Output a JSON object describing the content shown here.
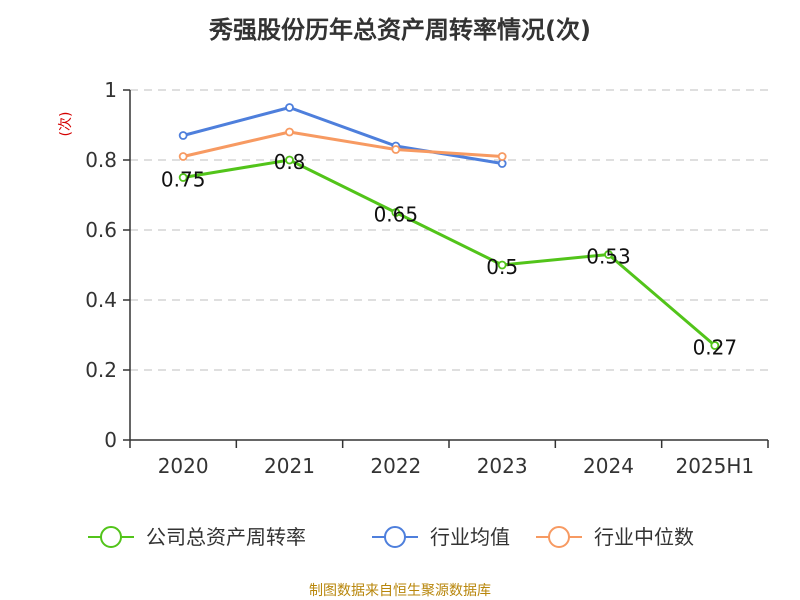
{
  "chart_data": {
    "type": "line",
    "title": "秀强股份历年总资产周转率情况(次)",
    "ylabel": "(次)",
    "xlabel": "",
    "categories": [
      "2020",
      "2021",
      "2022",
      "2023",
      "2024",
      "2025H1"
    ],
    "ylim": [
      0,
      1
    ],
    "yticks": [
      0,
      0.2,
      0.4,
      0.6,
      0.8,
      1
    ],
    "ytick_labels": [
      "0",
      "0.2",
      "0.4",
      "0.6",
      "0.8",
      "1"
    ],
    "grid": true,
    "legend_position": "bottom",
    "series": [
      {
        "name": "公司总资产周转率",
        "color": "#52c41a",
        "values": [
          0.75,
          0.8,
          0.65,
          0.5,
          0.53,
          0.27
        ],
        "labels": [
          "0.75",
          "0.8",
          "0.65",
          "0.5",
          "0.53",
          "0.27"
        ],
        "show_labels": true
      },
      {
        "name": "行业均值",
        "color": "#4e7fdc",
        "values": [
          0.87,
          0.95,
          0.84,
          0.79,
          null,
          null
        ],
        "show_labels": false
      },
      {
        "name": "行业中位数",
        "color": "#f79a62",
        "values": [
          0.81,
          0.88,
          0.83,
          0.81,
          null,
          null
        ],
        "show_labels": false
      }
    ],
    "source": "制图数据来自恒生聚源数据库"
  }
}
